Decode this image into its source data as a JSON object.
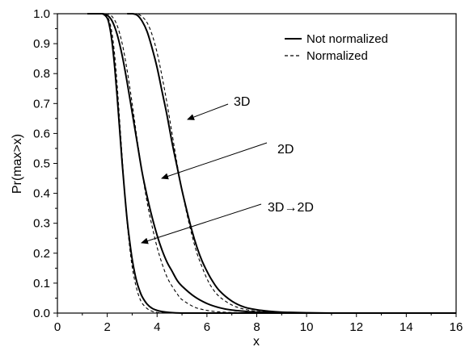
{
  "chart_data": {
    "type": "line",
    "xlabel": "x",
    "ylabel": "Pr(max>x)",
    "xlim": [
      0,
      16
    ],
    "ylim": [
      0,
      1
    ],
    "xticks": [
      "0",
      "2",
      "4",
      "6",
      "8",
      "10",
      "12",
      "14",
      "16"
    ],
    "yticks": [
      "0.0",
      "0.1",
      "0.2",
      "0.3",
      "0.4",
      "0.5",
      "0.6",
      "0.7",
      "0.8",
      "0.9",
      "1.0"
    ],
    "grid": false,
    "legend_position": "top-right",
    "legend": [
      {
        "label": "Not normalized",
        "style": "solid"
      },
      {
        "label": "Normalized",
        "style": "dashed"
      }
    ],
    "annotations": [
      {
        "text": "3D",
        "points_to_series": "3D"
      },
      {
        "text": "2D",
        "points_to_series": "2D"
      },
      {
        "text": "3D→2D",
        "points_to_series": "3D→2D"
      }
    ],
    "series": [
      {
        "name": "3D",
        "style": "solid",
        "x": [
          2.8,
          3.0,
          3.2,
          3.4,
          3.6,
          3.8,
          4.0,
          4.2,
          4.4,
          4.6,
          4.8,
          5.0,
          5.2,
          5.4,
          5.6,
          5.8,
          6.0,
          6.2,
          6.5,
          7.0,
          7.5,
          8.0,
          8.5,
          9.0,
          9.5,
          10.0,
          11.0,
          12.0,
          13.0,
          16.0
        ],
        "y": [
          1.0,
          1.0,
          0.995,
          0.975,
          0.94,
          0.885,
          0.82,
          0.74,
          0.66,
          0.57,
          0.49,
          0.41,
          0.34,
          0.275,
          0.22,
          0.175,
          0.14,
          0.11,
          0.075,
          0.04,
          0.02,
          0.011,
          0.006,
          0.003,
          0.002,
          0.001,
          0.0,
          0.0,
          0.0,
          0.0
        ]
      },
      {
        "name": "3D",
        "style": "dashed",
        "x": [
          2.8,
          3.0,
          3.2,
          3.4,
          3.6,
          3.8,
          4.0,
          4.2,
          4.4,
          4.6,
          4.8,
          5.0,
          5.2,
          5.4,
          5.6,
          5.8,
          6.0,
          6.2,
          6.5,
          7.0,
          7.5,
          8.0,
          8.5,
          9.0,
          9.5,
          10.0,
          11.0,
          12.0,
          13.0,
          16.0
        ],
        "y": [
          1.0,
          1.0,
          1.0,
          0.99,
          0.97,
          0.93,
          0.87,
          0.79,
          0.7,
          0.6,
          0.5,
          0.41,
          0.33,
          0.26,
          0.2,
          0.155,
          0.115,
          0.085,
          0.055,
          0.027,
          0.013,
          0.006,
          0.003,
          0.001,
          0.0,
          0.0,
          0.0,
          0.0,
          0.0,
          0.0
        ]
      },
      {
        "name": "2D",
        "style": "solid",
        "x": [
          1.5,
          1.8,
          2.0,
          2.2,
          2.4,
          2.6,
          2.8,
          3.0,
          3.2,
          3.4,
          3.6,
          3.8,
          4.0,
          4.2,
          4.4,
          4.6,
          4.8,
          5.0,
          5.5,
          6.0,
          6.5,
          7.0,
          7.5,
          8.0,
          9.0,
          10.0,
          12.0,
          16.0
        ],
        "y": [
          1.0,
          1.0,
          0.995,
          0.975,
          0.93,
          0.86,
          0.77,
          0.67,
          0.57,
          0.47,
          0.39,
          0.32,
          0.26,
          0.21,
          0.17,
          0.14,
          0.11,
          0.09,
          0.055,
          0.032,
          0.018,
          0.01,
          0.006,
          0.003,
          0.001,
          0.0,
          0.0,
          0.0
        ]
      },
      {
        "name": "2D",
        "style": "dashed",
        "x": [
          1.5,
          1.8,
          2.0,
          2.2,
          2.4,
          2.6,
          2.8,
          3.0,
          3.2,
          3.4,
          3.6,
          3.8,
          4.0,
          4.2,
          4.4,
          4.6,
          4.8,
          5.0,
          5.5,
          6.0,
          6.5,
          7.0,
          7.5,
          8.0,
          9.0,
          10.0,
          12.0,
          16.0
        ],
        "y": [
          1.0,
          1.0,
          1.0,
          0.99,
          0.96,
          0.9,
          0.81,
          0.7,
          0.58,
          0.47,
          0.37,
          0.29,
          0.22,
          0.165,
          0.12,
          0.09,
          0.065,
          0.045,
          0.02,
          0.009,
          0.004,
          0.002,
          0.001,
          0.0,
          0.0,
          0.0,
          0.0,
          0.0
        ]
      },
      {
        "name": "3D→2D",
        "style": "solid",
        "x": [
          1.2,
          1.5,
          1.8,
          2.0,
          2.1,
          2.2,
          2.3,
          2.4,
          2.5,
          2.6,
          2.7,
          2.8,
          2.9,
          3.0,
          3.1,
          3.2,
          3.3,
          3.4,
          3.6,
          3.8,
          4.0,
          4.2,
          4.5,
          5.0,
          5.5,
          6.0,
          7.0,
          16.0
        ],
        "y": [
          1.0,
          1.0,
          1.0,
          0.985,
          0.955,
          0.9,
          0.82,
          0.72,
          0.61,
          0.5,
          0.4,
          0.31,
          0.24,
          0.18,
          0.135,
          0.1,
          0.075,
          0.055,
          0.03,
          0.016,
          0.009,
          0.005,
          0.002,
          0.0,
          0.0,
          0.0,
          0.0,
          0.0
        ]
      },
      {
        "name": "3D→2D",
        "style": "dashed",
        "x": [
          1.2,
          1.5,
          1.8,
          2.0,
          2.1,
          2.2,
          2.3,
          2.4,
          2.5,
          2.6,
          2.7,
          2.8,
          2.9,
          3.0,
          3.1,
          3.2,
          3.3,
          3.4,
          3.6,
          3.8,
          4.0,
          4.2,
          4.5,
          5.0,
          5.5,
          6.0,
          7.0,
          16.0
        ],
        "y": [
          1.0,
          1.0,
          1.0,
          0.99,
          0.97,
          0.93,
          0.86,
          0.76,
          0.64,
          0.52,
          0.4,
          0.3,
          0.22,
          0.155,
          0.11,
          0.075,
          0.05,
          0.033,
          0.015,
          0.006,
          0.002,
          0.001,
          0.0,
          0.0,
          0.0,
          0.0,
          0.0,
          0.0
        ]
      }
    ]
  }
}
